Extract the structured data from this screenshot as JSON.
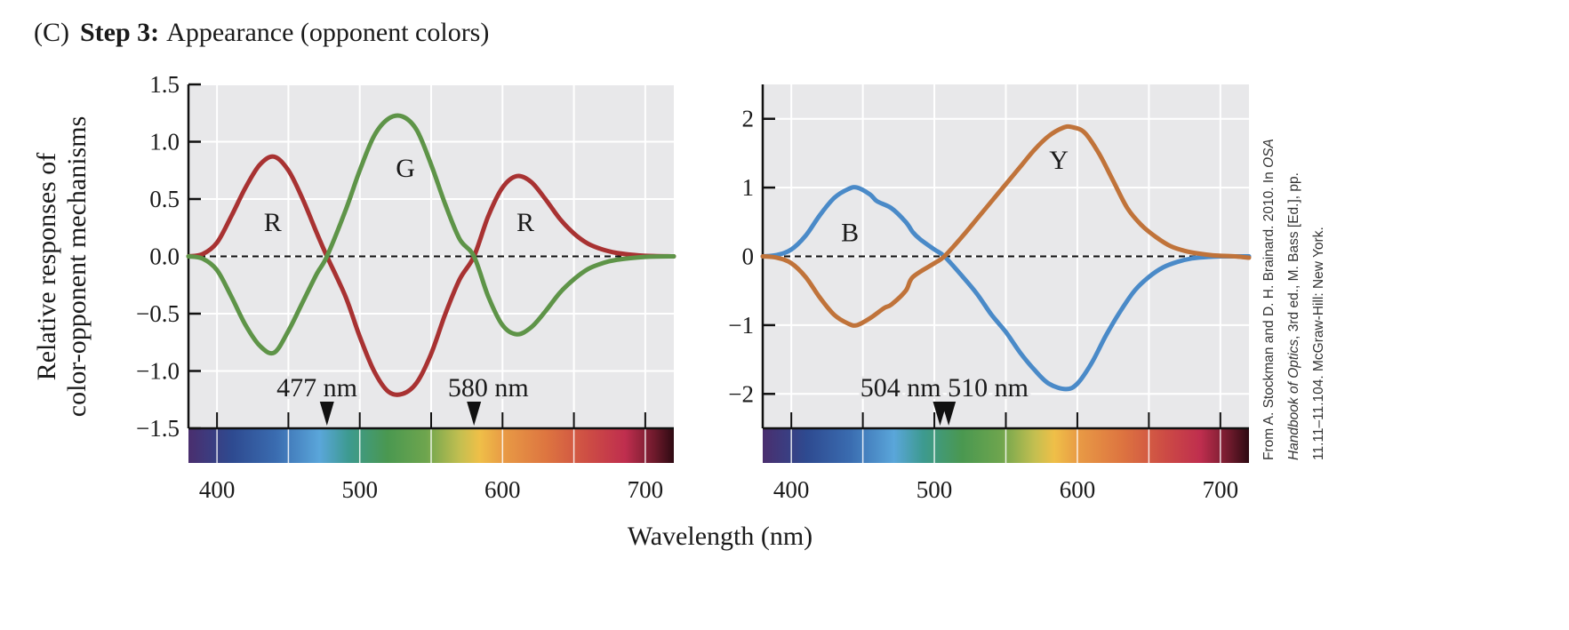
{
  "figure": {
    "panel_label": "(C)",
    "title_bold": "Step 3:",
    "title_rest": "Appearance (opponent colors)",
    "ylabel_line1": "Relative responses of",
    "ylabel_line2": "color-opponent mechanisms",
    "xlabel": "Wavelength (nm)",
    "credit": {
      "line1": "From A. Stockman and D. H. Brainard. 2010. In ",
      "line1_italic": "OSA",
      "line2_italic": "Handbook of Optics",
      "line2": ", 3rd ed., M. Bass [Ed.], pp.",
      "line3": "11.11–11.104. McGraw-Hill: New York."
    }
  },
  "chart_data": [
    {
      "type": "line",
      "xlim": [
        380,
        720
      ],
      "ylim": [
        -1.5,
        1.5
      ],
      "xticks": [
        400,
        500,
        600,
        700
      ],
      "yticks": [
        -1.5,
        -1.0,
        -0.5,
        0.0,
        0.5,
        1.0,
        1.5
      ],
      "ytick_labels": [
        "−1.5",
        "−1.0",
        "−0.5",
        "0.0",
        "0.5",
        "1.0",
        "1.5"
      ],
      "grid": true,
      "zero_line": "dashed",
      "spectrum_bar": true,
      "series": [
        {
          "color": "#a83232",
          "points": [
            [
              380,
              0
            ],
            [
              390,
              0.02
            ],
            [
              400,
              0.12
            ],
            [
              410,
              0.35
            ],
            [
              420,
              0.6
            ],
            [
              430,
              0.8
            ],
            [
              440,
              0.87
            ],
            [
              450,
              0.75
            ],
            [
              460,
              0.5
            ],
            [
              470,
              0.2
            ],
            [
              477,
              0
            ],
            [
              490,
              -0.35
            ],
            [
              500,
              -0.7
            ],
            [
              510,
              -1.0
            ],
            [
              520,
              -1.18
            ],
            [
              530,
              -1.2
            ],
            [
              540,
              -1.1
            ],
            [
              550,
              -0.85
            ],
            [
              560,
              -0.5
            ],
            [
              570,
              -0.2
            ],
            [
              580,
              0
            ],
            [
              590,
              0.35
            ],
            [
              600,
              0.6
            ],
            [
              610,
              0.7
            ],
            [
              620,
              0.65
            ],
            [
              630,
              0.5
            ],
            [
              640,
              0.33
            ],
            [
              650,
              0.2
            ],
            [
              660,
              0.11
            ],
            [
              670,
              0.06
            ],
            [
              680,
              0.03
            ],
            [
              690,
              0.015
            ],
            [
              700,
              0.005
            ],
            [
              720,
              0
            ]
          ]
        },
        {
          "color": "#5e9448",
          "points": [
            [
              380,
              0
            ],
            [
              390,
              -0.02
            ],
            [
              400,
              -0.12
            ],
            [
              410,
              -0.35
            ],
            [
              420,
              -0.6
            ],
            [
              430,
              -0.78
            ],
            [
              440,
              -0.84
            ],
            [
              450,
              -0.65
            ],
            [
              460,
              -0.4
            ],
            [
              470,
              -0.15
            ],
            [
              477,
              0
            ],
            [
              490,
              0.4
            ],
            [
              500,
              0.75
            ],
            [
              510,
              1.05
            ],
            [
              520,
              1.2
            ],
            [
              530,
              1.22
            ],
            [
              540,
              1.1
            ],
            [
              550,
              0.8
            ],
            [
              560,
              0.45
            ],
            [
              570,
              0.15
            ],
            [
              580,
              0
            ],
            [
              590,
              -0.35
            ],
            [
              600,
              -0.6
            ],
            [
              610,
              -0.68
            ],
            [
              620,
              -0.62
            ],
            [
              630,
              -0.48
            ],
            [
              640,
              -0.32
            ],
            [
              650,
              -0.2
            ],
            [
              660,
              -0.11
            ],
            [
              670,
              -0.06
            ],
            [
              680,
              -0.03
            ],
            [
              700,
              -0.005
            ],
            [
              720,
              0
            ]
          ]
        }
      ],
      "curve_labels": [
        {
          "text": "R",
          "x": 439,
          "y": 0.3
        },
        {
          "text": "G",
          "x": 532,
          "y": 0.77
        },
        {
          "text": "R",
          "x": 616,
          "y": 0.3
        }
      ],
      "arrows": [
        477,
        580
      ],
      "arrow_labels": [
        {
          "text": "477 nm",
          "x": 470
        },
        {
          "text": "580 nm",
          "x": 590
        }
      ]
    },
    {
      "type": "line",
      "xlim": [
        380,
        720
      ],
      "ylim": [
        -2.5,
        2.5
      ],
      "xticks": [
        400,
        500,
        600,
        700
      ],
      "yticks": [
        -2,
        -1,
        0,
        1,
        2
      ],
      "ytick_labels": [
        "−2",
        "−1",
        "0",
        "1",
        "2"
      ],
      "grid": true,
      "zero_line": "dashed",
      "spectrum_bar": true,
      "series": [
        {
          "color": "#4a8ac8",
          "points": [
            [
              380,
              0
            ],
            [
              390,
              0.02
            ],
            [
              400,
              0.1
            ],
            [
              410,
              0.3
            ],
            [
              420,
              0.6
            ],
            [
              430,
              0.85
            ],
            [
              440,
              0.98
            ],
            [
              446,
              1.0
            ],
            [
              455,
              0.9
            ],
            [
              460,
              0.8
            ],
            [
              470,
              0.7
            ],
            [
              480,
              0.5
            ],
            [
              485,
              0.35
            ],
            [
              490,
              0.25
            ],
            [
              500,
              0.1
            ],
            [
              507,
              0
            ],
            [
              520,
              -0.3
            ],
            [
              530,
              -0.55
            ],
            [
              540,
              -0.85
            ],
            [
              550,
              -1.1
            ],
            [
              560,
              -1.4
            ],
            [
              570,
              -1.65
            ],
            [
              580,
              -1.85
            ],
            [
              592,
              -1.93
            ],
            [
              600,
              -1.85
            ],
            [
              610,
              -1.55
            ],
            [
              620,
              -1.15
            ],
            [
              630,
              -0.8
            ],
            [
              640,
              -0.5
            ],
            [
              650,
              -0.3
            ],
            [
              660,
              -0.16
            ],
            [
              670,
              -0.08
            ],
            [
              680,
              -0.03
            ],
            [
              690,
              -0.01
            ],
            [
              700,
              0
            ],
            [
              720,
              0
            ]
          ]
        },
        {
          "color": "#c0733a",
          "points": [
            [
              380,
              0
            ],
            [
              390,
              -0.02
            ],
            [
              400,
              -0.1
            ],
            [
              410,
              -0.3
            ],
            [
              420,
              -0.6
            ],
            [
              430,
              -0.85
            ],
            [
              440,
              -0.98
            ],
            [
              446,
              -1.0
            ],
            [
              455,
              -0.9
            ],
            [
              465,
              -0.75
            ],
            [
              470,
              -0.7
            ],
            [
              480,
              -0.5
            ],
            [
              485,
              -0.3
            ],
            [
              500,
              -0.1
            ],
            [
              507,
              0
            ],
            [
              520,
              0.3
            ],
            [
              530,
              0.55
            ],
            [
              540,
              0.8
            ],
            [
              550,
              1.05
            ],
            [
              560,
              1.3
            ],
            [
              570,
              1.55
            ],
            [
              580,
              1.75
            ],
            [
              590,
              1.87
            ],
            [
              596,
              1.88
            ],
            [
              605,
              1.8
            ],
            [
              615,
              1.5
            ],
            [
              625,
              1.1
            ],
            [
              635,
              0.7
            ],
            [
              645,
              0.45
            ],
            [
              655,
              0.28
            ],
            [
              665,
              0.15
            ],
            [
              675,
              0.08
            ],
            [
              685,
              0.04
            ],
            [
              695,
              0.015
            ],
            [
              710,
              0
            ],
            [
              720,
              -0.02
            ]
          ]
        }
      ],
      "curve_labels": [
        {
          "text": "B",
          "x": 441,
          "y": 0.35
        },
        {
          "text": "Y",
          "x": 587,
          "y": 1.4
        }
      ],
      "arrows": [
        504,
        510
      ],
      "arrow_labels": [
        {
          "text": "504 nm 510 nm",
          "x": 507
        }
      ]
    }
  ]
}
